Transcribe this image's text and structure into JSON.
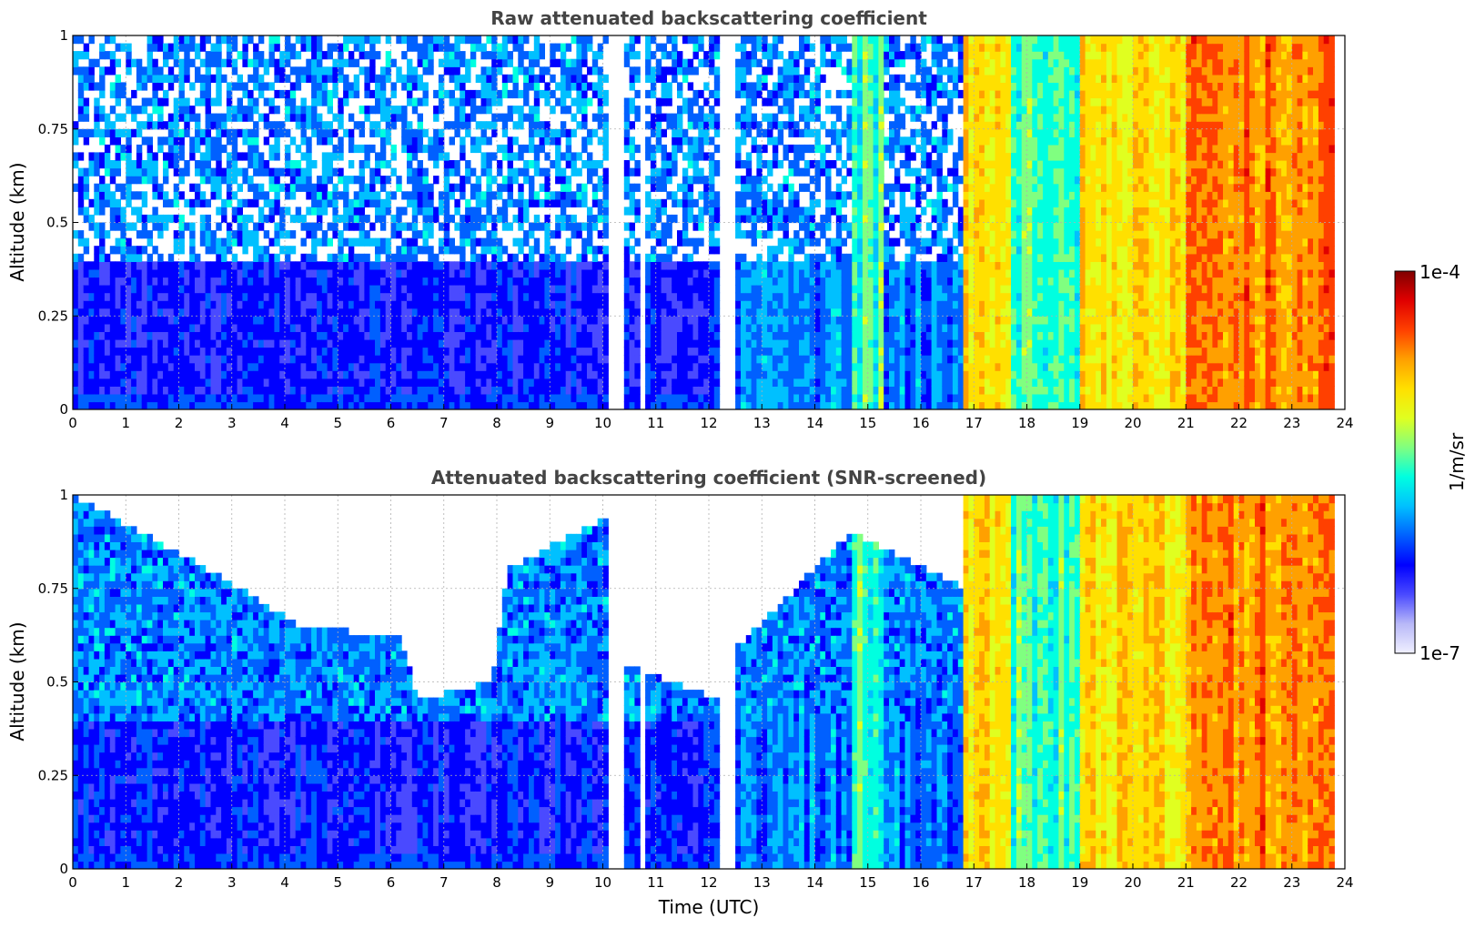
{
  "chart_data": [
    {
      "type": "heatmap",
      "title": "Raw attenuated backscattering coefficient",
      "xlabel": "",
      "ylabel": "Altitude (km)",
      "xlim": [
        0,
        24
      ],
      "ylim": [
        0,
        1
      ],
      "x_ticks": [
        "0",
        "1",
        "2",
        "3",
        "4",
        "5",
        "6",
        "7",
        "8",
        "9",
        "10",
        "11",
        "12",
        "13",
        "14",
        "15",
        "16",
        "17",
        "18",
        "19",
        "20",
        "21",
        "22",
        "23",
        "24"
      ],
      "y_ticks": [
        "0",
        "0.25",
        "0.5",
        "0.75",
        "1"
      ],
      "grid": true,
      "data_gaps_utc": [
        [
          10.15,
          10.4
        ],
        [
          10.75,
          10.85
        ],
        [
          12.2,
          12.55
        ]
      ],
      "time_segments_utc": [
        {
          "start": 0,
          "end": 10.15,
          "level": "low",
          "note": "diffuse aerosol layer below ~0.4 km, noisy above"
        },
        {
          "start": 10.4,
          "end": 12.2,
          "level": "low"
        },
        {
          "start": 12.55,
          "end": 14.7,
          "level": "low-moderate",
          "note": "streaks near 13 UTC"
        },
        {
          "start": 14.7,
          "end": 15.3,
          "level": "moderate"
        },
        {
          "start": 15.3,
          "end": 16.8,
          "level": "low-moderate"
        },
        {
          "start": 16.8,
          "end": 17.7,
          "level": "high",
          "note": "precipitation streaks near 17 and 17.5 UTC"
        },
        {
          "start": 17.7,
          "end": 19.0,
          "level": "moderate"
        },
        {
          "start": 19.0,
          "end": 21.0,
          "level": "high"
        },
        {
          "start": 21.0,
          "end": 23.8,
          "level": "very high",
          "note": "maxima near 22.6 UTC"
        }
      ]
    },
    {
      "type": "heatmap",
      "title": "Attenuated backscattering coefficient (SNR-screened)",
      "xlabel": "Time (UTC)",
      "ylabel": "Altitude (km)",
      "xlim": [
        0,
        24
      ],
      "ylim": [
        0,
        1
      ],
      "x_ticks": [
        "0",
        "1",
        "2",
        "3",
        "4",
        "5",
        "6",
        "7",
        "8",
        "9",
        "10",
        "11",
        "12",
        "13",
        "14",
        "15",
        "16",
        "17",
        "18",
        "19",
        "20",
        "21",
        "22",
        "23",
        "24"
      ],
      "y_ticks": [
        "0",
        "0.25",
        "0.5",
        "0.75",
        "1"
      ],
      "grid": true,
      "screened_top_km": [
        {
          "t": 0.0,
          "h": 1.0
        },
        {
          "t": 2.8,
          "h": 0.78
        },
        {
          "t": 4.3,
          "h": 0.65
        },
        {
          "t": 6.2,
          "h": 0.62
        },
        {
          "t": 6.5,
          "h": 0.45
        },
        {
          "t": 7.9,
          "h": 0.5
        },
        {
          "t": 8.2,
          "h": 0.8
        },
        {
          "t": 10.15,
          "h": 0.95
        },
        {
          "t": 10.4,
          "h": 0.55
        },
        {
          "t": 12.2,
          "h": 0.45
        },
        {
          "t": 12.55,
          "h": 0.6
        },
        {
          "t": 14.7,
          "h": 0.9
        },
        {
          "t": 16.8,
          "h": 0.75
        },
        {
          "t": 17.0,
          "h": 1.0
        },
        {
          "t": 23.8,
          "h": 1.0
        }
      ]
    }
  ],
  "colorbar": {
    "scale": "log",
    "min_label": "1e-7",
    "max_label": "1e-4",
    "label": "1/m/sr",
    "colormap": [
      "#f0f0ff",
      "#b8b8f8",
      "#4a4aff",
      "#0000ff",
      "#0060ff",
      "#00c0ff",
      "#00ffe0",
      "#80ff80",
      "#e0ff20",
      "#ffe000",
      "#ffa000",
      "#ff4000",
      "#e00000",
      "#800000"
    ]
  }
}
